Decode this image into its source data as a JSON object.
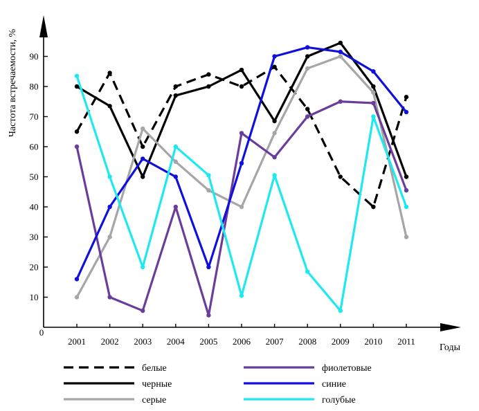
{
  "chart_data": {
    "type": "line",
    "ylabel": "Частота  встречаемости, %",
    "xlabel": "Годы",
    "origin_label": "0",
    "categories": [
      "2001",
      "2002",
      "2003",
      "2004",
      "2005",
      "2006",
      "2007",
      "2008",
      "2009",
      "2010",
      "2011"
    ],
    "y_ticks": [
      10,
      20,
      30,
      40,
      50,
      60,
      70,
      80,
      90
    ],
    "ylim": [
      0,
      100
    ],
    "grid": false,
    "legend_position": "bottom",
    "series": [
      {
        "name": "белые",
        "color": "#000000",
        "dash": "dashed",
        "values": [
          65,
          84.5,
          60,
          80,
          84,
          80,
          86.5,
          72.5,
          50,
          40,
          76.5
        ]
      },
      {
        "name": "черные",
        "color": "#000000",
        "dash": "solid",
        "values": [
          80,
          73.5,
          50,
          77,
          80,
          85.5,
          68.5,
          90,
          94.5,
          80,
          50
        ]
      },
      {
        "name": "серые",
        "color": "#a6a6a6",
        "dash": "solid",
        "values": [
          10,
          30,
          66,
          55,
          45.5,
          40,
          64.5,
          86,
          90,
          78,
          30
        ]
      },
      {
        "name": "фиолетовые",
        "color": "#6a3d9a",
        "dash": "solid",
        "values": [
          60,
          10,
          5.5,
          40,
          4,
          64.5,
          56.5,
          70,
          75,
          74.5,
          45.5
        ]
      },
      {
        "name": "синие",
        "color": "#1010dd",
        "dash": "solid",
        "values": [
          16,
          40,
          56,
          50,
          20,
          54.5,
          90,
          93,
          91.5,
          85,
          71.5
        ]
      },
      {
        "name": "голубые",
        "color": "#1ee8f0",
        "dash": "solid",
        "values": [
          83.5,
          50,
          20,
          60,
          50.5,
          10.5,
          50.5,
          18.5,
          5.5,
          70,
          40
        ]
      }
    ]
  }
}
